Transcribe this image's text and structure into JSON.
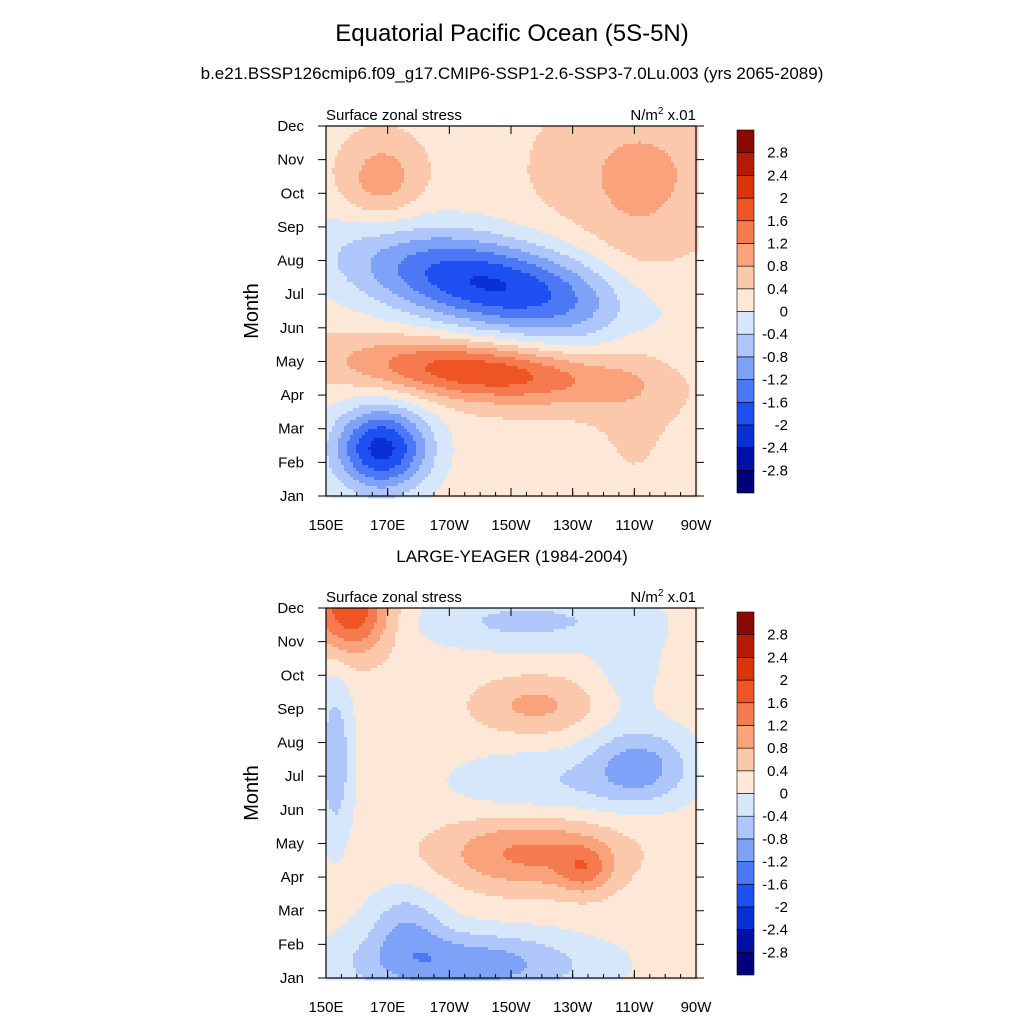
{
  "title": "Equatorial Pacific Ocean (5S-5N)",
  "subtitle": "b.e21.BSSP126cmip6.f09_g17.CMIP6-SSP1-2.6-SSP3-7.0Lu.003 (yrs 2065-2089)",
  "chart_data": [
    {
      "type": "heatmap",
      "panel_title": "",
      "left_label": "Surface zonal stress",
      "right_label_base": "N/m",
      "right_label_exp": "2",
      "right_label_suffix": " x.01",
      "ylabel": "Month",
      "x_ticks": [
        "150E",
        "170E",
        "170W",
        "150W",
        "130W",
        "110W",
        "90W"
      ],
      "y_ticks": [
        "Jan",
        "Feb",
        "Mar",
        "Apr",
        "May",
        "Jun",
        "Jul",
        "Aug",
        "Sep",
        "Oct",
        "Nov",
        "Dec"
      ],
      "xlim": [
        150,
        270
      ],
      "ylim": [
        1,
        12
      ],
      "grid": false,
      "legend": "right",
      "levels": [
        -3.2,
        -2.8,
        -2.4,
        -2.0,
        -1.6,
        -1.2,
        -0.8,
        -0.4,
        0.0,
        0.4,
        0.8,
        1.2,
        1.6,
        2.0,
        2.4,
        2.8,
        3.2
      ],
      "level_labels": [
        "-2.8",
        "-2.4",
        "-2",
        "-1.6",
        "-1.2",
        "-0.8",
        "-0.4",
        "0",
        "0.4",
        "0.8",
        "1.2",
        "1.6",
        "2",
        "2.4",
        "2.8"
      ],
      "colors": [
        "#00007f",
        "#0010a8",
        "#0a2fd6",
        "#1e4ff0",
        "#4c78f5",
        "#7ea2f7",
        "#aec6f9",
        "#d6e6fb",
        "#fde7d6",
        "#fbc8ac",
        "#f9a27c",
        "#f57a4d",
        "#ef5522",
        "#dc340a",
        "#b81b05",
        "#8a0a02"
      ],
      "background": 0.25,
      "blobs": [
        {
          "x": 203,
          "y": 7.3,
          "sx": 28,
          "sy": 1.1,
          "r": 0.45,
          "a": -2.3
        },
        {
          "x": 200,
          "y": 4.7,
          "sx": 28,
          "sy": 0.65,
          "r": 0.5,
          "a": 1.7
        },
        {
          "x": 168,
          "y": 2.4,
          "sx": 11,
          "sy": 0.9,
          "r": 0.0,
          "a": -2.4
        },
        {
          "x": 168,
          "y": 10.4,
          "sx": 9,
          "sy": 0.9,
          "r": 0.0,
          "a": 0.8
        },
        {
          "x": 252,
          "y": 10.6,
          "sx": 22,
          "sy": 1.6,
          "r": 0.0,
          "a": 0.6
        },
        {
          "x": 250,
          "y": 5.5,
          "sx": 10,
          "sy": 3.0,
          "r": 0.0,
          "a": 0.3
        }
      ]
    },
    {
      "type": "heatmap",
      "panel_title": "LARGE-YEAGER (1984-2004)",
      "left_label": "Surface zonal stress",
      "right_label_base": "N/m",
      "right_label_exp": "2",
      "right_label_suffix": " x.01",
      "ylabel": "Month",
      "x_ticks": [
        "150E",
        "170E",
        "170W",
        "150W",
        "130W",
        "110W",
        "90W"
      ],
      "y_ticks": [
        "Jan",
        "Feb",
        "Mar",
        "Apr",
        "May",
        "Jun",
        "Jul",
        "Aug",
        "Sep",
        "Oct",
        "Nov",
        "Dec"
      ],
      "xlim": [
        150,
        270
      ],
      "ylim": [
        1,
        12
      ],
      "grid": false,
      "legend": "right",
      "levels": [
        -3.2,
        -2.8,
        -2.4,
        -2.0,
        -1.6,
        -1.2,
        -0.8,
        -0.4,
        0.0,
        0.4,
        0.8,
        1.2,
        1.6,
        2.0,
        2.4,
        2.8,
        3.2
      ],
      "level_labels": [
        "-2.8",
        "-2.4",
        "-2",
        "-1.6",
        "-1.2",
        "-0.8",
        "-0.4",
        "0",
        "0.4",
        "0.8",
        "1.2",
        "1.6",
        "2",
        "2.4",
        "2.8"
      ],
      "colors": [
        "#00007f",
        "#0010a8",
        "#0a2fd6",
        "#1e4ff0",
        "#4c78f5",
        "#7ea2f7",
        "#aec6f9",
        "#d6e6fb",
        "#fde7d6",
        "#fbc8ac",
        "#f9a27c",
        "#f57a4d",
        "#ef5522",
        "#dc340a",
        "#b81b05",
        "#8a0a02"
      ],
      "background": 0.2,
      "blobs": [
        {
          "x": 158,
          "y": 11.9,
          "sx": 9,
          "sy": 0.9,
          "r": 0.0,
          "a": 1.8
        },
        {
          "x": 216,
          "y": 4.7,
          "sx": 20,
          "sy": 0.75,
          "r": 0.0,
          "a": 1.1
        },
        {
          "x": 234,
          "y": 4.2,
          "sx": 6,
          "sy": 0.5,
          "r": 0.0,
          "a": 0.8
        },
        {
          "x": 218,
          "y": 9.1,
          "sx": 14,
          "sy": 0.6,
          "r": 0.0,
          "a": 0.7
        },
        {
          "x": 195,
          "y": 1.4,
          "sx": 28,
          "sy": 0.7,
          "r": 0.0,
          "a": -1.3
        },
        {
          "x": 176,
          "y": 2.6,
          "sx": 9,
          "sy": 0.8,
          "r": 0.0,
          "a": -0.8
        },
        {
          "x": 252,
          "y": 7.3,
          "sx": 12,
          "sy": 0.8,
          "r": 0.0,
          "a": -1.1
        },
        {
          "x": 220,
          "y": 6.8,
          "sx": 22,
          "sy": 0.7,
          "r": 0.0,
          "a": -0.55
        },
        {
          "x": 215,
          "y": 11.6,
          "sx": 26,
          "sy": 0.6,
          "r": 0.0,
          "a": -0.7
        },
        {
          "x": 153,
          "y": 7.5,
          "sx": 4,
          "sy": 1.8,
          "r": 0.0,
          "a": -0.9
        },
        {
          "x": 248,
          "y": 10.3,
          "sx": 8,
          "sy": 1.2,
          "r": 0.0,
          "a": -0.4
        }
      ]
    }
  ]
}
